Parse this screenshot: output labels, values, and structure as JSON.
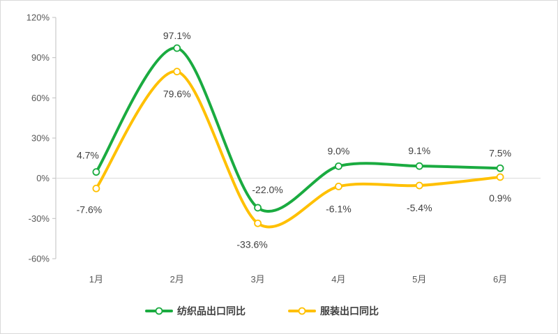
{
  "chart_data": {
    "type": "line",
    "title": "",
    "xlabel": "",
    "ylabel": "",
    "categories": [
      "1月",
      "2月",
      "3月",
      "4月",
      "5月",
      "6月"
    ],
    "ylim": [
      -60,
      120
    ],
    "yticks": [
      -60,
      -30,
      0,
      30,
      60,
      90,
      120
    ],
    "ytick_labels": [
      "-60%",
      "-30%",
      "0%",
      "30%",
      "60%",
      "90%",
      "120%"
    ],
    "grid": false,
    "smooth": true,
    "legend_position": "bottom",
    "series": [
      {
        "name": "纺织品出口同比",
        "color": "#1aab40",
        "values": [
          4.7,
          97.1,
          -22.0,
          9.0,
          9.1,
          7.5
        ],
        "labels": [
          "4.7%",
          "97.1%",
          "-22.0%",
          "9.0%",
          "9.1%",
          "7.5%"
        ]
      },
      {
        "name": "服装出口同比",
        "color": "#ffc000",
        "values": [
          -7.6,
          79.6,
          -33.6,
          -6.1,
          -5.4,
          0.9
        ],
        "labels": [
          "-7.6%",
          "79.6%",
          "-33.6%",
          "-6.1%",
          "-5.4%",
          "0.9%"
        ]
      }
    ]
  }
}
